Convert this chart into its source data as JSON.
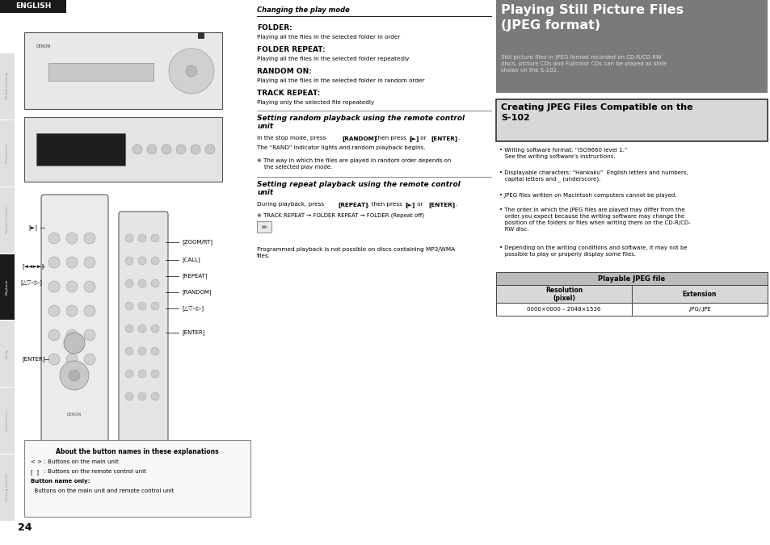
{
  "page_bg": "#ffffff",
  "english_label": "ENGLISH",
  "english_bg": "#1a1a1a",
  "english_fg": "#ffffff",
  "title_main": "Playing Still Picture Files\n(JPEG format)",
  "title_main_bg": "#7a7a7a",
  "title_main_fg": "#ffffff",
  "title_sub_text": "Still picture files in JPEG format recorded on CD-R/CD-RW\ndiscs, picture CDs and Fujicolor CDs can be played as slide\nshows on the S-102.",
  "title_sub_fg": "#dddddd",
  "section2_title": "Creating JPEG Files Compatible on the\nS-102",
  "section2_bg": "#d8d8d8",
  "section2_border": "#333333",
  "section2_fg": "#000000",
  "bullet_points": [
    "Writing software format: “ISO9660 level 1.”\n   See the writing software’s instructions.",
    "Displayable characters: “Hankaku”  English letters and numbers,\n   capital letters and _ (underscore).",
    "JPEG files written on Macintosh computers cannot be played.",
    "The order in which the JPEG files are played may differ from the\n   order you expect because the writing software may change the\n   position of the folders or files when writing them on the CD-R/CD-\n   RW disc.",
    "Depending on the writing conditions and software, it may not be\n   possible to play or properly display some files."
  ],
  "table_header": "Playable JPEG file",
  "table_col1_header": "Resolution\n(pixel)",
  "table_col2_header": "Extension",
  "table_col1_val": "0000×0000 – 2048×1536",
  "table_col2_val": ".JPG/.JPE",
  "table_header_bg": "#bbbbbb",
  "table_subheader_bg": "#d8d8d8",
  "middle_section_title": "Changing the play mode",
  "folder_label": "FOLDER:",
  "folder_desc": "Playing all the files in the selected folder in order",
  "folder_repeat_label": "FOLDER REPEAT:",
  "folder_repeat_desc": "Playing all the files in the selected folder repeatedly",
  "random_on_label": "RANDOM ON:",
  "random_on_desc": "Playing all the files in the selected folder in random order",
  "track_repeat_label": "TRACK REPEAT:",
  "track_repeat_desc": "Playing only the selected file repeatedly",
  "section_random_title": "Setting random playback using the remote control\nunit",
  "section_random_body1": "In the stop mode, press ",
  "section_random_bold1": "[RANDOM]",
  "section_random_body2": " , then press ",
  "section_random_bold2": "[►]",
  "section_random_body3": " or ",
  "section_random_bold3": "[ENTER]",
  "section_random_body4": ".",
  "section_random_line2": "The “RAND” indicator lights and random playback begins.",
  "section_random_note": "※ The way in which the files are played in random order depends on\n    the selected play mode.",
  "section_repeat_title": "Setting repeat playback using the remote control\nunit",
  "section_repeat_body1": "During playback, press ",
  "section_repeat_bold1": "[REPEAT]",
  "section_repeat_body2": " , then press ",
  "section_repeat_bold2": "[►]",
  "section_repeat_body3": " or ",
  "section_repeat_bold3": "[ENTER]",
  "section_repeat_body4": ".",
  "section_repeat_note": "※ TRACK REPEAT → FOLDER REPEAT → FOLDER (Repeat off)",
  "programmed_note": "Programmed playback is not possible on discs containing MP3/WMA\nfiles.",
  "button_box_title": "About the button names in these explanations",
  "button_box_line1a": "< >",
  "button_box_line1b": "  : Buttons on the main unit",
  "button_box_line2a": "[  ]",
  "button_box_line2b": "  : Buttons on the remote control unit",
  "button_box_bold": "Button name only:",
  "button_box_line3": "  Buttons on the main unit and remote control unit",
  "page_number": "24",
  "sidebar_labels": [
    "Getting Started",
    "Connections",
    "Setup",
    "Playback",
    "Remote Control",
    "Information",
    "Troubleshooting"
  ],
  "sidebar_active": "Playback"
}
